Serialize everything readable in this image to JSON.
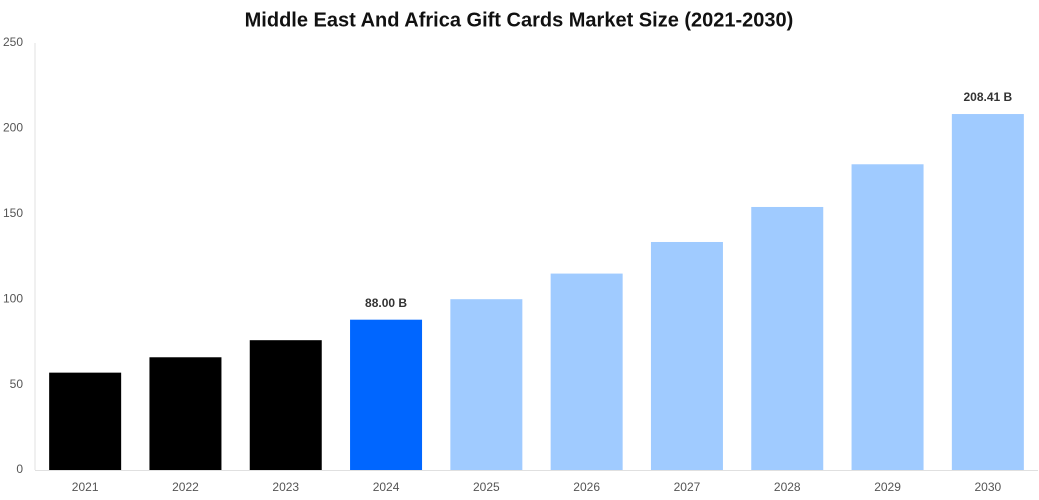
{
  "chart_data": {
    "type": "bar",
    "title": "Middle East And Africa Gift Cards Market Size (2021-2030)",
    "categories": [
      "2021",
      "2022",
      "2023",
      "2024",
      "2025",
      "2026",
      "2027",
      "2028",
      "2029",
      "2030"
    ],
    "values": [
      57,
      66,
      76,
      88,
      100,
      115,
      133.5,
      154,
      179,
      208.41
    ],
    "value_labels": [
      null,
      null,
      null,
      "88.00 B",
      null,
      null,
      null,
      null,
      null,
      "208.41 B"
    ],
    "colors": [
      "#000000",
      "#000000",
      "#000000",
      "#0066ff",
      "#a0cbff",
      "#a0cbff",
      "#a0cbff",
      "#a0cbff",
      "#a0cbff",
      "#a0cbff"
    ],
    "ylim": [
      0,
      250
    ],
    "yticks": [
      0,
      50,
      100,
      150,
      200,
      250
    ],
    "grid": false
  }
}
